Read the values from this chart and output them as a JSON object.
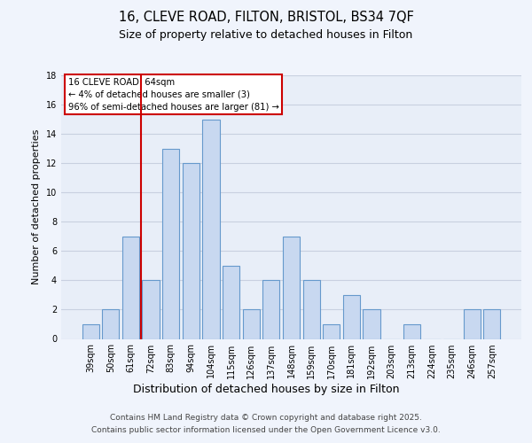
{
  "title1": "16, CLEVE ROAD, FILTON, BRISTOL, BS34 7QF",
  "title2": "Size of property relative to detached houses in Filton",
  "xlabel": "Distribution of detached houses by size in Filton",
  "ylabel": "Number of detached properties",
  "categories": [
    "39sqm",
    "50sqm",
    "61sqm",
    "72sqm",
    "83sqm",
    "94sqm",
    "104sqm",
    "115sqm",
    "126sqm",
    "137sqm",
    "148sqm",
    "159sqm",
    "170sqm",
    "181sqm",
    "192sqm",
    "203sqm",
    "213sqm",
    "224sqm",
    "235sqm",
    "246sqm",
    "257sqm"
  ],
  "values": [
    1,
    2,
    7,
    4,
    13,
    12,
    15,
    5,
    2,
    4,
    7,
    4,
    1,
    3,
    2,
    0,
    1,
    0,
    0,
    2,
    2
  ],
  "bar_color": "#c8d8f0",
  "bar_edge_color": "#6699cc",
  "vline_color": "#cc0000",
  "annotation_title": "16 CLEVE ROAD: 64sqm",
  "annotation_line1": "← 4% of detached houses are smaller (3)",
  "annotation_line2": "96% of semi-detached houses are larger (81) →",
  "annotation_box_color": "white",
  "annotation_box_edge": "#cc0000",
  "ylim": [
    0,
    18
  ],
  "yticks": [
    0,
    2,
    4,
    6,
    8,
    10,
    12,
    14,
    16,
    18
  ],
  "footer1": "Contains HM Land Registry data © Crown copyright and database right 2025.",
  "footer2": "Contains public sector information licensed under the Open Government Licence v3.0.",
  "bg_color": "#f0f4fc",
  "plot_bg_color": "#e8eef8",
  "grid_color": "#c8d0e0",
  "title1_fontsize": 10.5,
  "title2_fontsize": 9,
  "ylabel_fontsize": 8,
  "xlabel_fontsize": 9,
  "tick_fontsize": 7,
  "footer_fontsize": 6.5
}
